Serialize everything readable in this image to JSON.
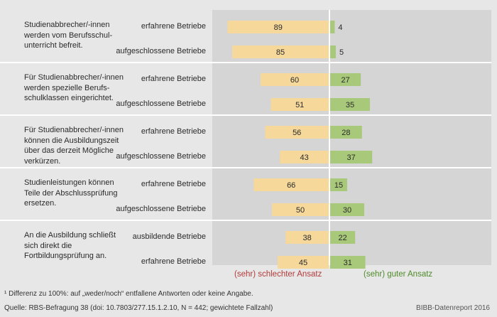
{
  "colors": {
    "negative": "#f5d89a",
    "positive": "#a9c97a",
    "divider": "#ffffff",
    "negative_text": "#b23a3a",
    "positive_text": "#4f8a2a"
  },
  "chart_data": {
    "type": "bar",
    "subtype": "diverging-horizontal",
    "title": "",
    "xlabel_negative": "(sehr) schlechter Ansatz",
    "xlabel_positive": "(sehr) guter Ansatz",
    "xlim_negative": [
      0,
      100
    ],
    "xlim_positive": [
      0,
      100
    ],
    "groups": [
      {
        "question": "Studienabbrecher/-innen werden vom Berufsschul-unterricht befreit.",
        "rows": [
          {
            "label": "erfahrene Betriebe",
            "negative": 89,
            "positive": 4
          },
          {
            "label": "aufgeschlossene Betriebe",
            "negative": 85,
            "positive": 5
          }
        ]
      },
      {
        "question": "Für Studienabbrecher/-innen werden spezielle Berufs-schulklassen eingerichtet.",
        "rows": [
          {
            "label": "erfahrene Betriebe",
            "negative": 60,
            "positive": 27
          },
          {
            "label": "aufgeschlossene Betriebe",
            "negative": 51,
            "positive": 35
          }
        ]
      },
      {
        "question": "Für Studienabbrecher/-innen können die Ausbildungszeit über das derzeit Mögliche verkürzen.",
        "rows": [
          {
            "label": "erfahrene Betriebe",
            "negative": 56,
            "positive": 28
          },
          {
            "label": "aufgeschlossene Betriebe",
            "negative": 43,
            "positive": 37
          }
        ]
      },
      {
        "question": "Studienleistungen können Teile der Abschlussprüfung ersetzen.",
        "rows": [
          {
            "label": "erfahrene Betriebe",
            "negative": 66,
            "positive": 15
          },
          {
            "label": "aufgeschlossene Betriebe",
            "negative": 50,
            "positive": 30
          }
        ]
      },
      {
        "question": "An die Ausbildung schließt sich direkt die Fortbildungsprüfung an.",
        "rows": [
          {
            "label": "ausbildende Betriebe",
            "negative": 38,
            "positive": 22
          },
          {
            "label": "erfahrene Betriebe",
            "negative": 45,
            "positive": 31
          }
        ]
      }
    ]
  },
  "footnotes": {
    "note": "¹ Differenz zu 100%: auf „weder/noch“ entfallene Antworten oder keine Angabe.",
    "source": "Quelle: RBS-Befragung 38 (doi: 10.7803/277.15.1.2.10, N = 442; gewichtete Fallzahl)",
    "credit": "BIBB-Datenreport 2016"
  }
}
